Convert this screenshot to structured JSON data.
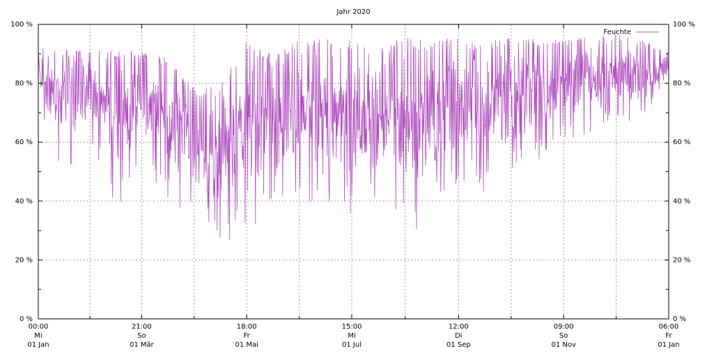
{
  "chart_data": {
    "type": "line",
    "title": "Jahr 2020",
    "xlabel": "",
    "ylabel": "",
    "y_unit": "%",
    "ylim": [
      0,
      100
    ],
    "xlim": [
      "2020-01-01",
      "2021-01-01"
    ],
    "grid": true,
    "legend_position": "top-right",
    "y_ticks": [
      "0 %",
      "20 %",
      "40 %",
      "60 %",
      "80 %",
      "100 %"
    ],
    "x_ticks": [
      {
        "date": "2020-01-01",
        "time": "00:00",
        "weekday": "Mi",
        "date_label": "01 Jan"
      },
      {
        "date": "2020-03-01",
        "time": "21:00",
        "weekday": "So",
        "date_label": "01 Mär"
      },
      {
        "date": "2020-05-01",
        "time": "18:00",
        "weekday": "Fr",
        "date_label": "01 Mai"
      },
      {
        "date": "2020-07-01",
        "time": "15:00",
        "weekday": "Mi",
        "date_label": "01 Jul"
      },
      {
        "date": "2020-09-01",
        "time": "12:00",
        "weekday": "Di",
        "date_label": "01 Sep"
      },
      {
        "date": "2020-11-01",
        "time": "09:00",
        "weekday": "So",
        "date_label": "01 Nov"
      },
      {
        "date": "2021-01-01",
        "time": "06:00",
        "weekday": "Fr",
        "date_label": "01 Jan"
      }
    ],
    "series": [
      {
        "name": "Feuchte",
        "color": "#b04fc0",
        "envelope": [
          {
            "date": "2020-01-01",
            "min": 72,
            "max": 93
          },
          {
            "date": "2020-01-15",
            "min": 49,
            "max": 92
          },
          {
            "date": "2020-02-01",
            "min": 58,
            "max": 91
          },
          {
            "date": "2020-02-15",
            "min": 36,
            "max": 91
          },
          {
            "date": "2020-03-01",
            "min": 54,
            "max": 91
          },
          {
            "date": "2020-03-15",
            "min": 40,
            "max": 89
          },
          {
            "date": "2020-04-01",
            "min": 33,
            "max": 78
          },
          {
            "date": "2020-04-15",
            "min": 24,
            "max": 79
          },
          {
            "date": "2020-05-01",
            "min": 31,
            "max": 95
          },
          {
            "date": "2020-05-15",
            "min": 34,
            "max": 90
          },
          {
            "date": "2020-06-01",
            "min": 33,
            "max": 96
          },
          {
            "date": "2020-06-15",
            "min": 41,
            "max": 95
          },
          {
            "date": "2020-07-01",
            "min": 32,
            "max": 95
          },
          {
            "date": "2020-07-15",
            "min": 37,
            "max": 91
          },
          {
            "date": "2020-08-01",
            "min": 26,
            "max": 97
          },
          {
            "date": "2020-08-15",
            "min": 33,
            "max": 94
          },
          {
            "date": "2020-09-01",
            "min": 45,
            "max": 96
          },
          {
            "date": "2020-09-15",
            "min": 43,
            "max": 93
          },
          {
            "date": "2020-10-01",
            "min": 48,
            "max": 97
          },
          {
            "date": "2020-10-15",
            "min": 53,
            "max": 95
          },
          {
            "date": "2020-11-01",
            "min": 59,
            "max": 95
          },
          {
            "date": "2020-11-15",
            "min": 63,
            "max": 96
          },
          {
            "date": "2020-12-01",
            "min": 68,
            "max": 97
          },
          {
            "date": "2020-12-15",
            "min": 64,
            "max": 95
          },
          {
            "date": "2021-01-01",
            "min": 80,
            "max": 91
          }
        ]
      }
    ]
  }
}
